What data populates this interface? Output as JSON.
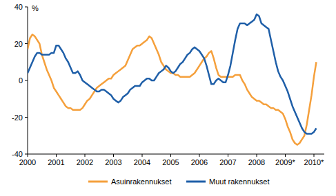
{
  "chart_data": {
    "type": "line",
    "y_label": "%",
    "categories": [
      "2000",
      null,
      null,
      null,
      null,
      null,
      null,
      null,
      null,
      null,
      null,
      null,
      "2001",
      null,
      null,
      null,
      null,
      null,
      null,
      null,
      null,
      null,
      null,
      null,
      "2002",
      null,
      null,
      null,
      null,
      null,
      null,
      null,
      null,
      null,
      null,
      null,
      "2003",
      null,
      null,
      null,
      null,
      null,
      null,
      null,
      null,
      null,
      null,
      null,
      "2004",
      null,
      null,
      null,
      null,
      null,
      null,
      null,
      null,
      null,
      null,
      null,
      "2005",
      null,
      null,
      null,
      null,
      null,
      null,
      null,
      null,
      null,
      null,
      null,
      "2006",
      null,
      null,
      null,
      null,
      null,
      null,
      null,
      null,
      null,
      null,
      null,
      "2007",
      null,
      null,
      null,
      null,
      null,
      null,
      null,
      null,
      null,
      null,
      null,
      "2008",
      null,
      null,
      null,
      null,
      null,
      null,
      null,
      null,
      null,
      null,
      null,
      "2009*",
      null,
      null,
      null,
      null,
      null,
      null,
      null,
      null,
      null,
      null,
      null,
      "2010*",
      null
    ],
    "series": [
      {
        "name": "Asuinrakennukset",
        "color": "#f5a03c",
        "values": [
          17,
          23,
          25,
          24,
          22,
          20,
          14,
          10,
          6,
          3,
          0,
          -4,
          -6,
          -8,
          -10,
          -12,
          -14,
          -15,
          -15,
          -16,
          -16,
          -16,
          -16,
          -15,
          -13,
          -11,
          -10,
          -8,
          -6,
          -4,
          -3,
          -2,
          -1,
          0,
          1,
          1,
          3,
          4,
          5,
          6,
          7,
          8,
          11,
          14,
          17,
          18,
          19,
          19,
          20,
          21,
          22,
          24,
          23,
          20,
          17,
          14,
          10,
          8,
          6,
          5,
          4,
          4,
          3,
          3,
          2,
          2,
          2,
          2,
          2,
          3,
          4,
          6,
          8,
          10,
          12,
          13,
          15,
          16,
          12,
          7,
          3,
          2,
          2,
          2,
          2,
          2,
          2,
          3,
          3,
          3,
          0,
          -2,
          -5,
          -7,
          -9,
          -10,
          -11,
          -11,
          -12,
          -13,
          -13,
          -14,
          -15,
          -15,
          -16,
          -16,
          -17,
          -18,
          -21,
          -25,
          -28,
          -32,
          -34,
          -35,
          -34,
          -32,
          -30,
          -24,
          -16,
          -8,
          2,
          10
        ]
      },
      {
        "name": "Muut rakennukset",
        "color": "#1f5fa8",
        "values": [
          4,
          7,
          10,
          13,
          15,
          15,
          14,
          14,
          14,
          14,
          15,
          15,
          19,
          19,
          17,
          15,
          12,
          10,
          7,
          4,
          4,
          5,
          3,
          0,
          -1,
          -2,
          -3,
          -4,
          -5,
          -6,
          -6,
          -5,
          -5,
          -6,
          -7,
          -8,
          -10,
          -11,
          -12,
          -11,
          -9,
          -8,
          -7,
          -5,
          -4,
          -3,
          -3,
          -3,
          -1,
          0,
          1,
          1,
          0,
          0,
          2,
          4,
          5,
          6,
          8,
          7,
          5,
          4,
          5,
          7,
          9,
          10,
          12,
          14,
          15,
          17,
          18,
          17,
          16,
          14,
          12,
          8,
          3,
          -2,
          -2,
          0,
          1,
          0,
          -1,
          -1,
          3,
          8,
          15,
          22,
          28,
          31,
          31,
          31,
          30,
          31,
          32,
          33,
          36,
          35,
          31,
          30,
          29,
          28,
          22,
          16,
          10,
          5,
          2,
          0,
          -3,
          -6,
          -10,
          -14,
          -17,
          -20,
          -23,
          -26,
          -28,
          -29,
          -29,
          -29,
          -28,
          -26
        ]
      }
    ],
    "ylim": [
      -40,
      40
    ],
    "yticks": [
      -40,
      -20,
      0,
      20,
      40
    ],
    "grid": false,
    "legend": "bottom"
  }
}
